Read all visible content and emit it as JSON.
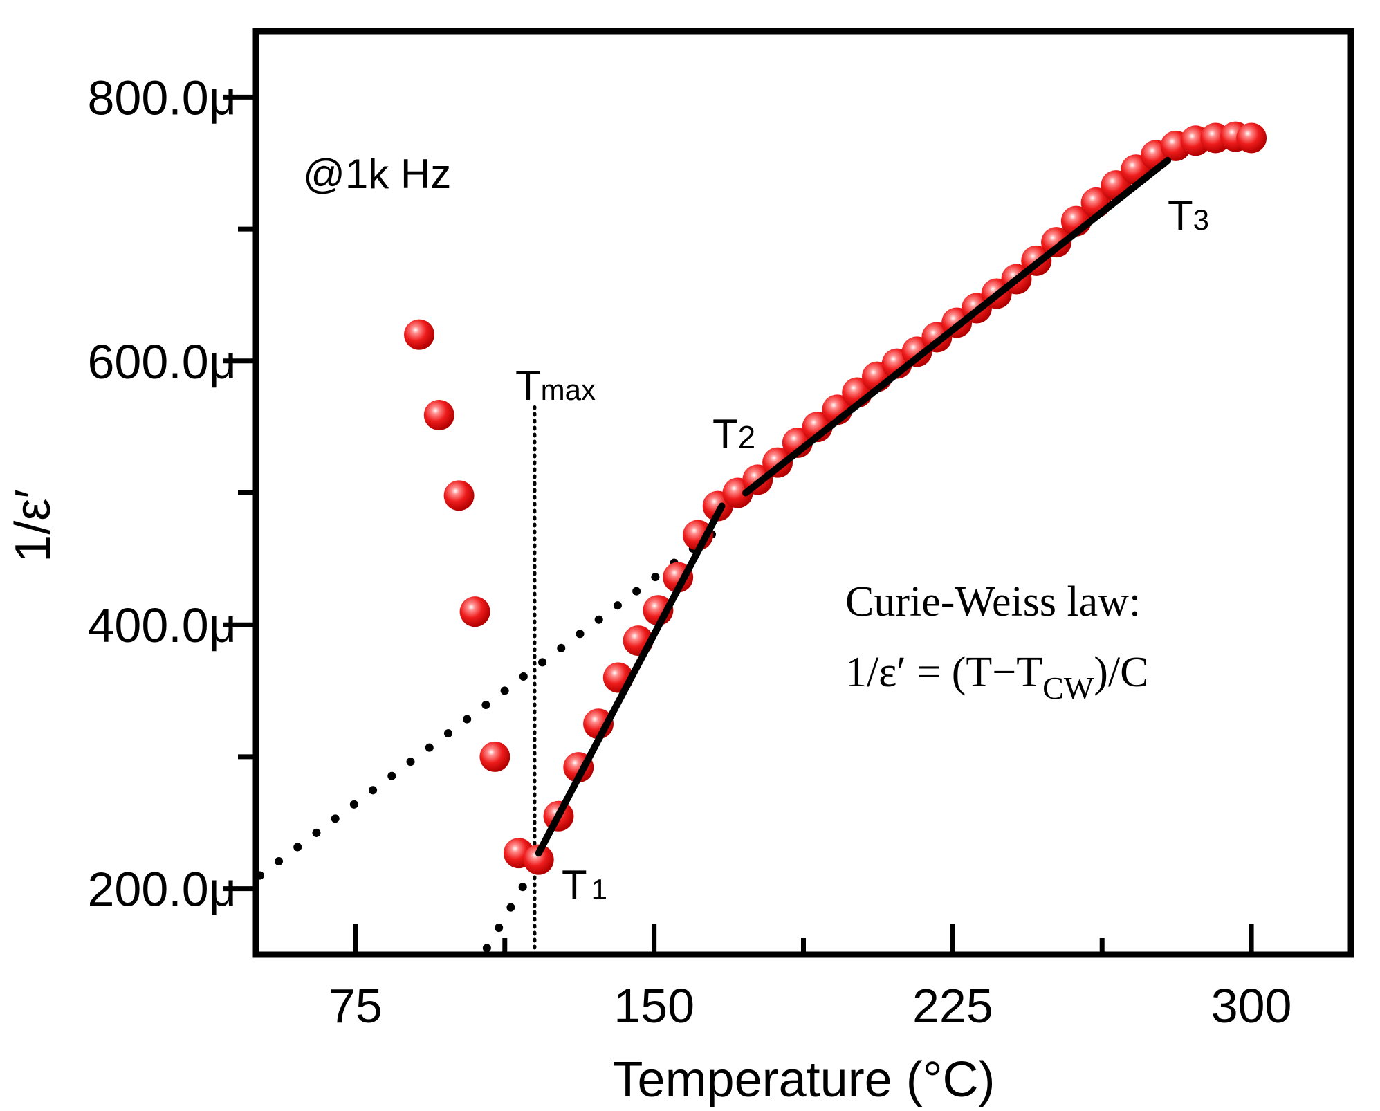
{
  "chart_data": {
    "type": "scatter",
    "title": "",
    "xlabel": "Temperature (°C)",
    "ylabel": "1/ε′",
    "xlim": [
      50,
      325
    ],
    "ylim": [
      150,
      850
    ],
    "xticks": [
      75,
      150,
      225,
      300
    ],
    "xtick_labels": [
      "75",
      "150",
      "225",
      "300"
    ],
    "yticks": [
      200,
      400,
      600,
      800
    ],
    "ytick_labels": [
      "200.0μ",
      "400.0μ",
      "600.0μ",
      "800.0μ"
    ],
    "series": [
      {
        "name": "1/ε′ @1k Hz",
        "marker": "sphere",
        "color": "#e8141b",
        "points": [
          {
            "x": 91,
            "y": 620
          },
          {
            "x": 96,
            "y": 559
          },
          {
            "x": 101,
            "y": 498
          },
          {
            "x": 105,
            "y": 410
          },
          {
            "x": 110,
            "y": 300
          },
          {
            "x": 116,
            "y": 227
          },
          {
            "x": 121,
            "y": 222
          },
          {
            "x": 126,
            "y": 255
          },
          {
            "x": 131,
            "y": 292
          },
          {
            "x": 136,
            "y": 325
          },
          {
            "x": 141,
            "y": 360
          },
          {
            "x": 146,
            "y": 388
          },
          {
            "x": 151,
            "y": 411
          },
          {
            "x": 156,
            "y": 436
          },
          {
            "x": 161,
            "y": 468
          },
          {
            "x": 166,
            "y": 490
          },
          {
            "x": 171,
            "y": 500
          },
          {
            "x": 176,
            "y": 510
          },
          {
            "x": 181,
            "y": 523
          },
          {
            "x": 186,
            "y": 538
          },
          {
            "x": 191,
            "y": 550
          },
          {
            "x": 196,
            "y": 563
          },
          {
            "x": 201,
            "y": 576
          },
          {
            "x": 206,
            "y": 588
          },
          {
            "x": 211,
            "y": 598
          },
          {
            "x": 216,
            "y": 607
          },
          {
            "x": 221,
            "y": 618
          },
          {
            "x": 226,
            "y": 629
          },
          {
            "x": 231,
            "y": 640
          },
          {
            "x": 236,
            "y": 651
          },
          {
            "x": 241,
            "y": 662
          },
          {
            "x": 246,
            "y": 676
          },
          {
            "x": 251,
            "y": 690
          },
          {
            "x": 256,
            "y": 706
          },
          {
            "x": 261,
            "y": 720
          },
          {
            "x": 266,
            "y": 733
          },
          {
            "x": 271,
            "y": 745
          },
          {
            "x": 276,
            "y": 756
          },
          {
            "x": 281,
            "y": 763
          },
          {
            "x": 286,
            "y": 767
          },
          {
            "x": 291,
            "y": 769
          },
          {
            "x": 296,
            "y": 770
          },
          {
            "x": 300,
            "y": 769
          }
        ]
      }
    ],
    "fit_lines": [
      {
        "name": "fit-T1-T2",
        "style": "solid",
        "from": [
          121,
          227
        ],
        "to": [
          167,
          490
        ]
      },
      {
        "name": "fit-T2-T3",
        "style": "solid",
        "from": [
          173,
          500
        ],
        "to": [
          279,
          752
        ]
      }
    ],
    "extrapolation_lines": [
      {
        "name": "extrap-segment-1",
        "style": "dotted",
        "from": [
          108,
          155
        ],
        "to": [
          122,
          227
        ]
      },
      {
        "name": "extrap-segment-2",
        "style": "dotted",
        "from": [
          51,
          210
        ],
        "to": [
          166,
          472
        ]
      }
    ],
    "reference_lines": [
      {
        "name": "tmax-line",
        "style": "dotted",
        "x": 120,
        "from_y": 150,
        "to_y": 565
      }
    ],
    "annotations": {
      "frequency": "@1k Hz",
      "t1": {
        "main": "T",
        "sub": "1"
      },
      "t2": {
        "main": "T",
        "sub": "2"
      },
      "t3": {
        "main": "T",
        "sub": "3"
      },
      "tmax": {
        "main": "T",
        "sub": "max"
      },
      "law_title": "Curie-Weiss law:",
      "law_formula_a": "1/ε′ = (T−T",
      "law_formula_sub": "CW",
      "law_formula_b": ")/C"
    }
  }
}
